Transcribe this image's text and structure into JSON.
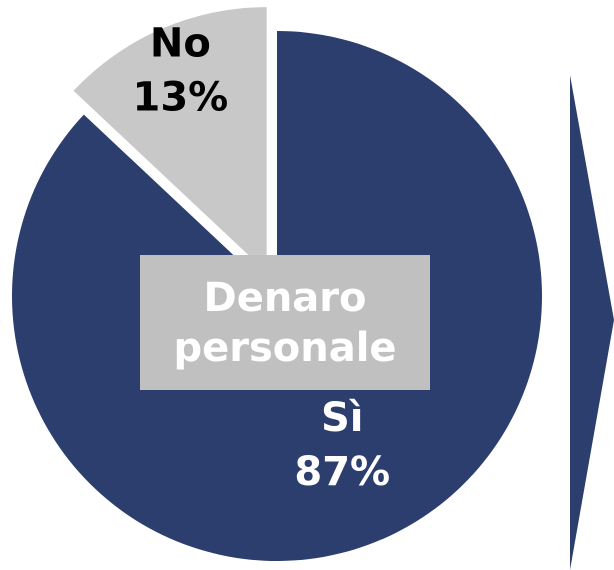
{
  "chart_data": {
    "type": "pie",
    "title": "Denaro personale",
    "categories": [
      "Sì",
      "No"
    ],
    "values": [
      87,
      13
    ],
    "value_labels": [
      "87%",
      "13%"
    ],
    "colors": [
      "#2c3e6e",
      "#c8c8c8"
    ],
    "label_colors": [
      "#ffffff",
      "#000000"
    ]
  }
}
